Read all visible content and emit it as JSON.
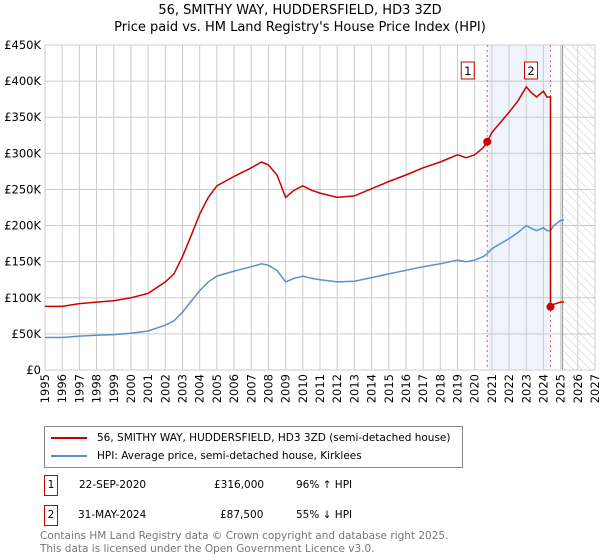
{
  "chart_data": {
    "type": "line",
    "title": "56, SMITHY WAY, HUDDERSFIELD, HD3 3ZD",
    "subtitle": "Price paid vs. HM Land Registry's House Price Index (HPI)",
    "xlim": [
      1995,
      2027
    ],
    "ylim": [
      0,
      450000
    ],
    "xticks": [
      1995,
      1996,
      1997,
      1998,
      1999,
      2000,
      2001,
      2002,
      2003,
      2004,
      2005,
      2006,
      2007,
      2008,
      2009,
      2010,
      2011,
      2012,
      2013,
      2014,
      2015,
      2016,
      2017,
      2018,
      2019,
      2020,
      2021,
      2022,
      2023,
      2024,
      2025,
      2026,
      2027
    ],
    "yticks": [
      {
        "v": 0,
        "label": "£0"
      },
      {
        "v": 50000,
        "label": "£50K"
      },
      {
        "v": 100000,
        "label": "£100K"
      },
      {
        "v": 150000,
        "label": "£150K"
      },
      {
        "v": 200000,
        "label": "£200K"
      },
      {
        "v": 250000,
        "label": "£250K"
      },
      {
        "v": 300000,
        "label": "£300K"
      },
      {
        "v": 350000,
        "label": "£350K"
      },
      {
        "v": 400000,
        "label": "£400K"
      },
      {
        "v": 450000,
        "label": "£450K"
      }
    ],
    "grid": true,
    "shaded_range": [
      2020.73,
      2024.41
    ],
    "forecast_from": 2025.1,
    "series": [
      {
        "name": "56, SMITHY WAY, HUDDERSFIELD, HD3 3ZD (semi-detached house)",
        "color": "#cc0000",
        "x": [
          1995,
          1996,
          1997,
          1998,
          1999,
          2000,
          2001,
          2002,
          2002.5,
          2003,
          2003.5,
          2004,
          2004.5,
          2005,
          2006,
          2007,
          2007.6,
          2008,
          2008.5,
          2009,
          2009.5,
          2010,
          2010.5,
          2011,
          2012,
          2013,
          2014,
          2015,
          2016,
          2017,
          2018,
          2019,
          2019.5,
          2020,
          2020.5,
          2020.73,
          2021,
          2021.5,
          2022,
          2022.5,
          2023,
          2023.3,
          2023.6,
          2024,
          2024.2,
          2024.41,
          2024.41,
          2024.6,
          2025,
          2025.2
        ],
        "y": [
          88,
          88,
          92,
          94,
          96,
          100,
          106,
          122,
          133,
          157,
          186,
          216,
          239,
          255,
          268,
          280,
          288,
          284,
          270,
          239,
          249,
          255,
          249,
          245,
          239,
          241,
          251,
          261,
          270,
          280,
          288,
          298,
          294,
          298,
          308,
          316,
          329,
          343,
          357,
          372,
          392,
          384,
          378,
          386,
          378,
          378,
          87.5,
          91,
          94,
          94
        ]
      },
      {
        "name": "HPI: Average price, semi-detached house, Kirklees",
        "color": "#5b8fd0",
        "x": [
          1995,
          1996,
          1997,
          1998,
          1999,
          2000,
          2001,
          2002,
          2002.5,
          2003,
          2003.5,
          2004,
          2004.5,
          2005,
          2006,
          2007,
          2007.6,
          2008,
          2008.5,
          2009,
          2009.5,
          2010,
          2010.5,
          2011,
          2012,
          2013,
          2014,
          2015,
          2016,
          2017,
          2018,
          2019,
          2019.5,
          2020,
          2020.5,
          2020.73,
          2021,
          2021.5,
          2022,
          2022.5,
          2023,
          2023.3,
          2023.6,
          2024,
          2024.2,
          2024.41,
          2024.6,
          2025,
          2025.2
        ],
        "y": [
          45,
          45,
          47,
          48,
          49,
          51,
          54,
          62,
          68,
          80,
          95,
          110,
          122,
          130,
          137,
          143,
          147,
          145,
          138,
          122,
          127,
          130,
          127,
          125,
          122,
          123,
          128,
          133,
          138,
          143,
          147,
          152,
          150,
          152,
          157,
          161,
          168,
          175,
          182,
          190,
          200,
          196,
          193,
          197,
          193,
          193,
          200,
          207,
          208
        ]
      }
    ],
    "y_units": "thousands GBP",
    "annotations": [
      {
        "label": "1",
        "x": 2020.73,
        "y": 316
      },
      {
        "label": "2",
        "x": 2024.41,
        "y": 87.5
      }
    ]
  },
  "transactions": [
    {
      "num": "1",
      "date": "22-SEP-2020",
      "price": "£316,000",
      "hpi": "96% ↑ HPI"
    },
    {
      "num": "2",
      "date": "31-MAY-2024",
      "price": "£87,500",
      "hpi": "55% ↓ HPI"
    }
  ],
  "footer": {
    "line1": "Contains HM Land Registry data © Crown copyright and database right 2025.",
    "line2": "This data is licensed under the Open Government Licence v3.0."
  }
}
